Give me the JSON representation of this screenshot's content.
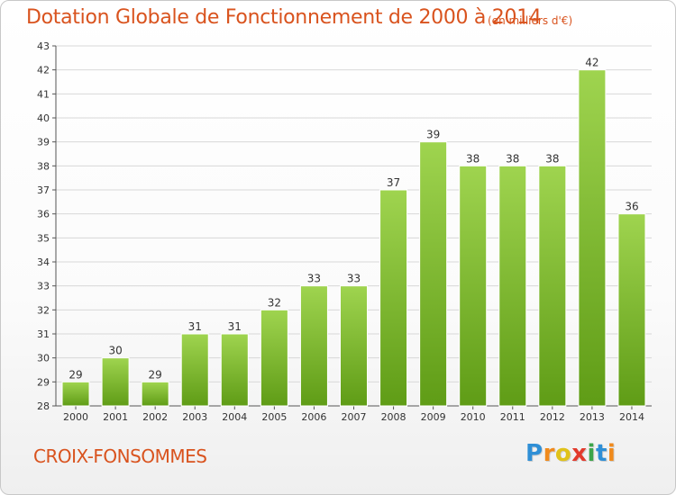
{
  "title": "Dotation Globale de Fonctionnement de 2000 à 2014",
  "subtitle": "(en milliers d'€)",
  "commune": "CROIX-FONSOMMES",
  "logo": {
    "letters": [
      "P",
      "r",
      "o",
      "x",
      "i",
      "t",
      "i"
    ],
    "colors": [
      "#2f8fd6",
      "#f08a1c",
      "#e0c21a",
      "#e23a2c",
      "#3ca54a",
      "#2f8fd6",
      "#f08a1c"
    ]
  },
  "colors": {
    "title": "#d9531e",
    "bar_light": "#9fd44f",
    "bar_dark": "#5f9c16",
    "grid": "#d8d8d8",
    "axis": "#555555"
  },
  "chart_data": {
    "type": "bar",
    "categories": [
      "2000",
      "2001",
      "2002",
      "2003",
      "2004",
      "2005",
      "2006",
      "2007",
      "2008",
      "2009",
      "2010",
      "2011",
      "2012",
      "2013",
      "2014"
    ],
    "values": [
      29,
      30,
      29,
      31,
      31,
      32,
      33,
      33,
      37,
      39,
      38,
      38,
      38,
      42,
      36
    ],
    "title": "Dotation Globale de Fonctionnement de 2000 à 2014",
    "xlabel": "",
    "ylabel": "",
    "ylim": [
      28,
      43
    ],
    "yticks": [
      28,
      29,
      30,
      31,
      32,
      33,
      34,
      35,
      36,
      37,
      38,
      39,
      40,
      41,
      42,
      43
    ],
    "grid": true
  }
}
